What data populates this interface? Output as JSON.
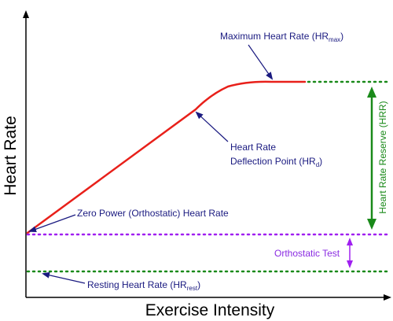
{
  "chart_data": {
    "type": "line",
    "title": "",
    "xlabel": "Exercise Intensity",
    "ylabel": "Heart Rate",
    "colors": {
      "curve": "#e8201a",
      "axis": "#000000",
      "annotation": "#1a1a80",
      "green": "#1a8a1a",
      "purple": "#a020f0"
    },
    "annotations": {
      "hrmax_label": {
        "main": "Maximum Heart Rate (HR",
        "sub": "max",
        "end": ")"
      },
      "hrd_label_line1": "Heart Rate",
      "hrd_label_line2": {
        "main": "Deflection Point (HR",
        "sub": "d",
        "end": ")"
      },
      "zero_power_label": "Zero Power (Orthostatic) Heart Rate",
      "resting_label": {
        "main": "Resting Heart Rate (HR",
        "sub": "rest",
        "end": ")"
      },
      "orthostatic_label": "Orthostatic Test",
      "hrr_label": "Heart Rate Reserve (HRR)"
    }
  }
}
